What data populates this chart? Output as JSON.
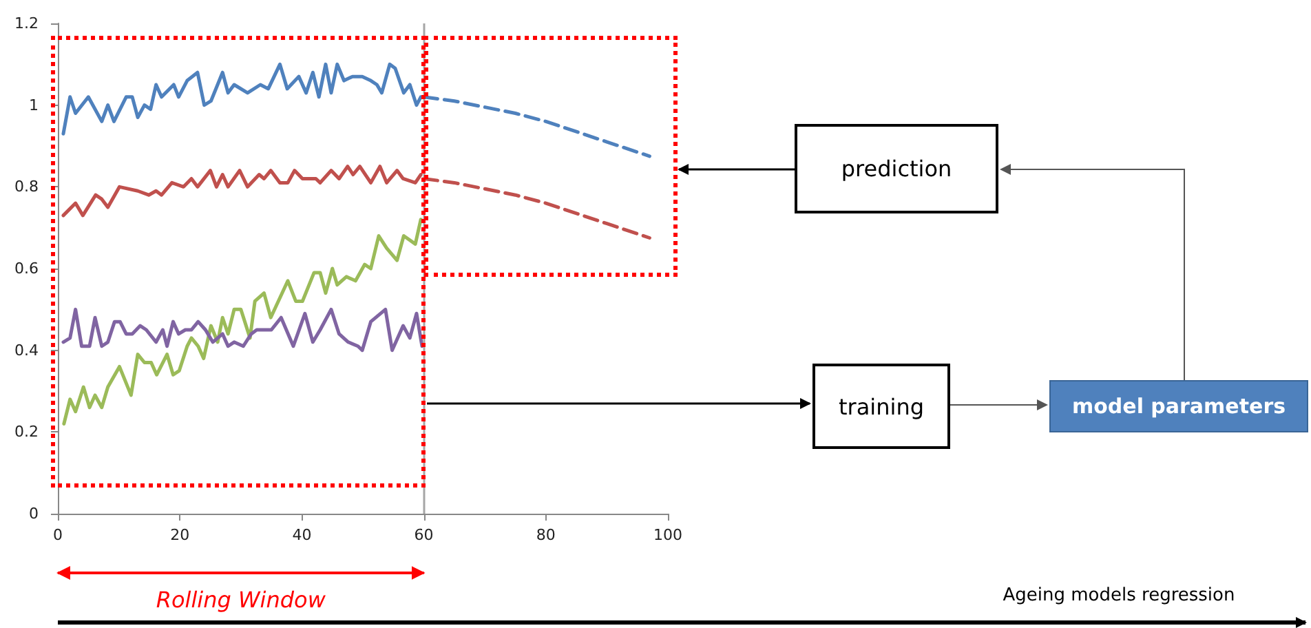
{
  "chart_data": {
    "type": "line",
    "xlim": [
      0,
      100
    ],
    "xticks": [
      0,
      20,
      40,
      60,
      80,
      100
    ],
    "ylim": [
      0,
      1.2
    ],
    "yticks": [
      0,
      0.2,
      0.4,
      0.6,
      0.8,
      1,
      1.2
    ],
    "grid": false,
    "marker": "none",
    "ref_lines": [
      {
        "axis": "x",
        "value": 60,
        "color": "#a6a6a6"
      }
    ],
    "annotations": [
      "Rolling Window",
      "prediction",
      "training",
      "model parameters",
      "Ageing models regression"
    ],
    "series": [
      {
        "color": "#4f81bd",
        "line_style": "solid",
        "x": [
          0.9,
          2,
          2.9,
          5,
          7.2,
          8.2,
          9.2,
          11.2,
          12.2,
          13.1,
          14.2,
          15.2,
          16.1,
          17,
          19,
          19.8,
          21.2,
          22.9,
          24,
          25.1,
          27,
          27.9,
          28.9,
          31.1,
          33.2,
          34.5,
          36.4,
          37.6,
          39.5,
          40.7,
          41.8,
          42.8,
          43.9,
          44.8,
          45.8,
          46.9,
          48.3,
          49.9,
          51.3,
          52.3,
          53.1,
          54.4,
          55.3,
          56.7,
          57.7,
          58.8,
          59.5
        ],
        "values": [
          0.93,
          1.02,
          0.98,
          1.02,
          0.96,
          1.0,
          0.96,
          1.02,
          1.02,
          0.97,
          1.0,
          0.99,
          1.05,
          1.02,
          1.05,
          1.02,
          1.06,
          1.08,
          1.0,
          1.01,
          1.08,
          1.03,
          1.05,
          1.03,
          1.05,
          1.04,
          1.1,
          1.04,
          1.07,
          1.03,
          1.08,
          1.02,
          1.1,
          1.03,
          1.1,
          1.06,
          1.07,
          1.07,
          1.06,
          1.05,
          1.03,
          1.1,
          1.09,
          1.03,
          1.05,
          1.0,
          1.02
        ]
      },
      {
        "color": "#c0504d",
        "line_style": "solid",
        "x": [
          0.9,
          2.9,
          4.1,
          6.2,
          7.2,
          8.2,
          10.1,
          13.1,
          14.9,
          16.1,
          17,
          18.7,
          20.6,
          21.9,
          22.9,
          25,
          26,
          27,
          27.9,
          29.8,
          31.1,
          33,
          33.8,
          34.9,
          36.4,
          37.7,
          38.8,
          40.1,
          42.3,
          43,
          44.8,
          46.1,
          47.5,
          48.4,
          49.5,
          51.3,
          52.8,
          53.9,
          55.6,
          56.6,
          58.6,
          59.5
        ],
        "values": [
          0.73,
          0.76,
          0.73,
          0.78,
          0.77,
          0.75,
          0.8,
          0.79,
          0.78,
          0.79,
          0.78,
          0.81,
          0.8,
          0.82,
          0.8,
          0.84,
          0.8,
          0.83,
          0.8,
          0.84,
          0.8,
          0.83,
          0.82,
          0.84,
          0.81,
          0.81,
          0.84,
          0.82,
          0.82,
          0.81,
          0.84,
          0.82,
          0.85,
          0.83,
          0.85,
          0.81,
          0.85,
          0.81,
          0.84,
          0.82,
          0.81,
          0.83
        ]
      },
      {
        "color": "#9bbb59",
        "line_style": "solid",
        "x": [
          1,
          2,
          2.9,
          4.2,
          5.2,
          6.1,
          7.2,
          8.2,
          10.1,
          12,
          13.1,
          14.2,
          15.3,
          16.2,
          17.9,
          18.9,
          19.9,
          21.2,
          21.9,
          23,
          23.9,
          25.1,
          26.2,
          27,
          27.9,
          28.9,
          30,
          31.5,
          32.3,
          33.8,
          34.9,
          37.7,
          39,
          40.1,
          42,
          43,
          43.9,
          45,
          45.8,
          47.3,
          48.8,
          50.3,
          51.3,
          52.6,
          53.9,
          55.6,
          56.7,
          58.6,
          59.5
        ],
        "values": [
          0.22,
          0.28,
          0.25,
          0.31,
          0.26,
          0.29,
          0.26,
          0.31,
          0.36,
          0.29,
          0.39,
          0.37,
          0.37,
          0.34,
          0.39,
          0.34,
          0.35,
          0.41,
          0.43,
          0.41,
          0.38,
          0.46,
          0.42,
          0.48,
          0.44,
          0.5,
          0.5,
          0.43,
          0.52,
          0.54,
          0.48,
          0.57,
          0.52,
          0.52,
          0.59,
          0.59,
          0.54,
          0.6,
          0.56,
          0.58,
          0.57,
          0.61,
          0.6,
          0.68,
          0.65,
          0.62,
          0.68,
          0.66,
          0.72
        ]
      },
      {
        "color": "#8064a2",
        "line_style": "solid",
        "x": [
          0.9,
          2,
          2.9,
          3.9,
          5.2,
          6.1,
          7.2,
          8.2,
          9.3,
          10.2,
          11.2,
          12.2,
          13.5,
          14.5,
          16.1,
          17.2,
          17.9,
          18.9,
          19.8,
          20.9,
          21.9,
          23,
          24.2,
          25.4,
          27,
          27.9,
          28.9,
          30.4,
          31.7,
          32.6,
          33.8,
          35,
          36.6,
          38.6,
          40.5,
          41.8,
          43,
          44.8,
          46.1,
          47.6,
          49.2,
          49.9,
          51.3,
          53.7,
          54.8,
          56.6,
          57.7,
          58.8,
          59.7
        ],
        "values": [
          0.42,
          0.43,
          0.5,
          0.41,
          0.41,
          0.48,
          0.41,
          0.42,
          0.47,
          0.47,
          0.44,
          0.44,
          0.46,
          0.45,
          0.42,
          0.45,
          0.41,
          0.47,
          0.44,
          0.45,
          0.45,
          0.47,
          0.45,
          0.42,
          0.44,
          0.41,
          0.42,
          0.41,
          0.44,
          0.45,
          0.45,
          0.45,
          0.48,
          0.41,
          0.49,
          0.42,
          0.45,
          0.5,
          0.44,
          0.42,
          0.41,
          0.4,
          0.47,
          0.5,
          0.4,
          0.46,
          0.43,
          0.49,
          0.41
        ]
      },
      {
        "color": "#4f81bd",
        "line_style": "dashed",
        "x": [
          60,
          65,
          70,
          75,
          80,
          85,
          90,
          97
        ],
        "values": [
          1.02,
          1.01,
          0.995,
          0.98,
          0.96,
          0.935,
          0.91,
          0.875
        ]
      },
      {
        "color": "#c0504d",
        "line_style": "dashed",
        "x": [
          60,
          65,
          70,
          75,
          80,
          85,
          90,
          97
        ],
        "values": [
          0.82,
          0.81,
          0.795,
          0.78,
          0.76,
          0.735,
          0.71,
          0.675
        ]
      }
    ]
  }
}
